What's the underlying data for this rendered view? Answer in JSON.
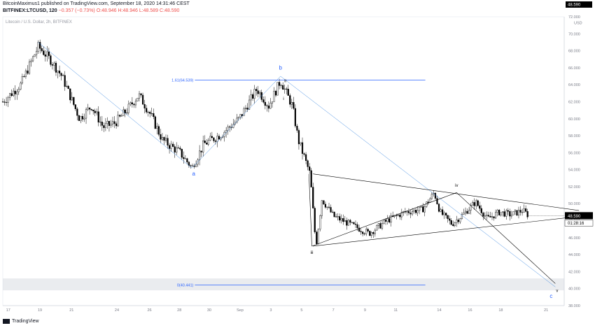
{
  "header": {
    "publisher_line": "BitcoinMaximus1 published on TradingView.com, September 18, 2020 14:31:46 CEST",
    "symbol": "BITFINEX:LTCUSD, 120",
    "change": "−0.357 (−0.73%)",
    "ohlc": "O:48.946 H:48.946 L:48.589 C:48.590",
    "price_top": "48.590"
  },
  "footer": {
    "brand": "TradingView"
  },
  "chart_data": {
    "type": "candlestick",
    "title": "Litecoin / U.S. Dollar, 2h, BITFINEX",
    "y_unit": "USD",
    "ylim": [
      38,
      72
    ],
    "y_ticks": [
      "38.000",
      "40.000",
      "42.000",
      "44.000",
      "46.000",
      "48.000",
      "50.000",
      "52.000",
      "54.000",
      "56.000",
      "58.000",
      "60.000",
      "62.000",
      "64.000",
      "66.000",
      "68.000",
      "70.000",
      "72.000"
    ],
    "x_ticks": [
      "17",
      "19",
      "21",
      "24",
      "26",
      "28",
      "30",
      "Sep",
      "3",
      "5",
      "7",
      "9",
      "11",
      "14",
      "16",
      "18",
      "21"
    ],
    "last_price": "48.590",
    "countdown": "01:28:16",
    "fib_levels": [
      {
        "label": "1.61(64.539)",
        "value": 64.539
      },
      {
        "label": "0(40.441)",
        "value": 40.441
      }
    ],
    "wave_labels": [
      "a",
      "b",
      "c",
      "i",
      "ii",
      "iii",
      "iv",
      "v"
    ],
    "price_path": [
      [
        0,
        62
      ],
      [
        3,
        64
      ],
      [
        6,
        68.5
      ],
      [
        8,
        67
      ],
      [
        10,
        65
      ],
      [
        13,
        60
      ],
      [
        15,
        61.5
      ],
      [
        17,
        59
      ],
      [
        19,
        59.5
      ],
      [
        21,
        61
      ],
      [
        23,
        62.8
      ],
      [
        25,
        60.5
      ],
      [
        27,
        57.5
      ],
      [
        30,
        56
      ],
      [
        32,
        54.2
      ],
      [
        34,
        57
      ],
      [
        37,
        58.2
      ],
      [
        40,
        60
      ],
      [
        43,
        63.5
      ],
      [
        45,
        61.5
      ],
      [
        47,
        64.5
      ],
      [
        48,
        63
      ],
      [
        49,
        61.5
      ],
      [
        50,
        57.5
      ],
      [
        52,
        53.5
      ],
      [
        53,
        45
      ],
      [
        54,
        50.5
      ],
      [
        56,
        48.5
      ],
      [
        59,
        47.5
      ],
      [
        62,
        46.5
      ],
      [
        65,
        48
      ],
      [
        68,
        49
      ],
      [
        71,
        49.3
      ],
      [
        73,
        51.3
      ],
      [
        74,
        49
      ],
      [
        76,
        47.6
      ],
      [
        78,
        48.8
      ],
      [
        80,
        50.2
      ],
      [
        82,
        48.2
      ],
      [
        84,
        49
      ],
      [
        86,
        48.7
      ],
      [
        88,
        49.2
      ],
      [
        89,
        48.59
      ]
    ]
  }
}
